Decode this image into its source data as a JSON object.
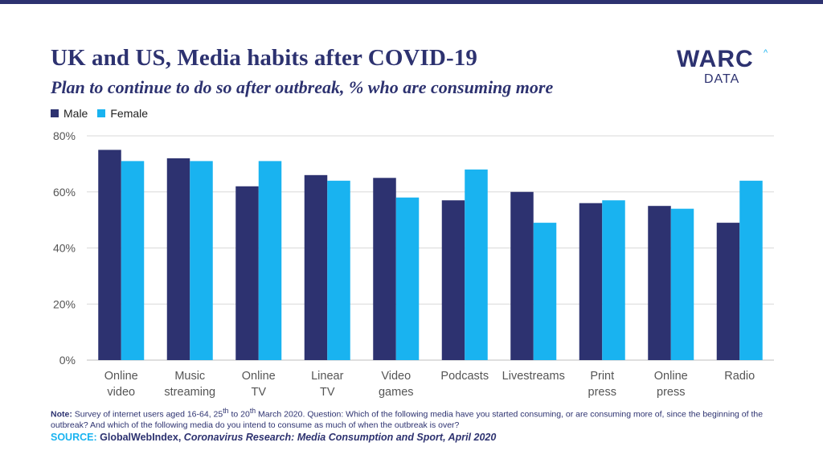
{
  "title": "UK and US, Media habits after COVID-19",
  "subtitle": "Plan to continue to do so after outbreak, % who are consuming more",
  "logo": {
    "main": "WARC",
    "caret": "^",
    "sub": "DATA"
  },
  "colors": {
    "male": "#2d3270",
    "female": "#19b3f0",
    "grid": "#d9d9d9",
    "text": "#2d3270"
  },
  "note": {
    "label": "Note:",
    "text_before_25": "Survey of internet users aged 16-64, 25",
    "sup1": "th",
    "text_between": " to 20",
    "sup2": "th",
    "text_after": " March 2020. Question: Which of the following media have you started consuming, or are consuming more of, since the beginning of the outbreak? And which of the following media do you intend to consume as much of when the outbreak is over?"
  },
  "source": {
    "label": "SOURCE:",
    "publisher": "GlobalWebIndex,",
    "title": "Coronavirus Research: Media Consumption and Sport, April 2020"
  },
  "chart_data": {
    "type": "bar",
    "categories": [
      [
        "Online",
        "video"
      ],
      [
        "Music",
        "streaming"
      ],
      [
        "Online",
        "TV"
      ],
      [
        "Linear",
        "TV"
      ],
      [
        "Video",
        "games"
      ],
      [
        "Podcasts"
      ],
      [
        "Livestreams"
      ],
      [
        "Print",
        "press"
      ],
      [
        "Online",
        "press"
      ],
      [
        "Radio"
      ]
    ],
    "series": [
      {
        "name": "Male",
        "color": "#2d3270",
        "values": [
          75,
          72,
          62,
          66,
          65,
          57,
          60,
          56,
          55,
          49
        ]
      },
      {
        "name": "Female",
        "color": "#19b3f0",
        "values": [
          71,
          71,
          71,
          64,
          58,
          68,
          49,
          57,
          54,
          64
        ]
      }
    ],
    "ylim": [
      0,
      80
    ],
    "yticks": [
      "0%",
      "20%",
      "40%",
      "60%",
      "80%"
    ],
    "ytick_values": [
      0,
      20,
      40,
      60,
      80
    ],
    "grid": true,
    "legend": "top-left"
  }
}
